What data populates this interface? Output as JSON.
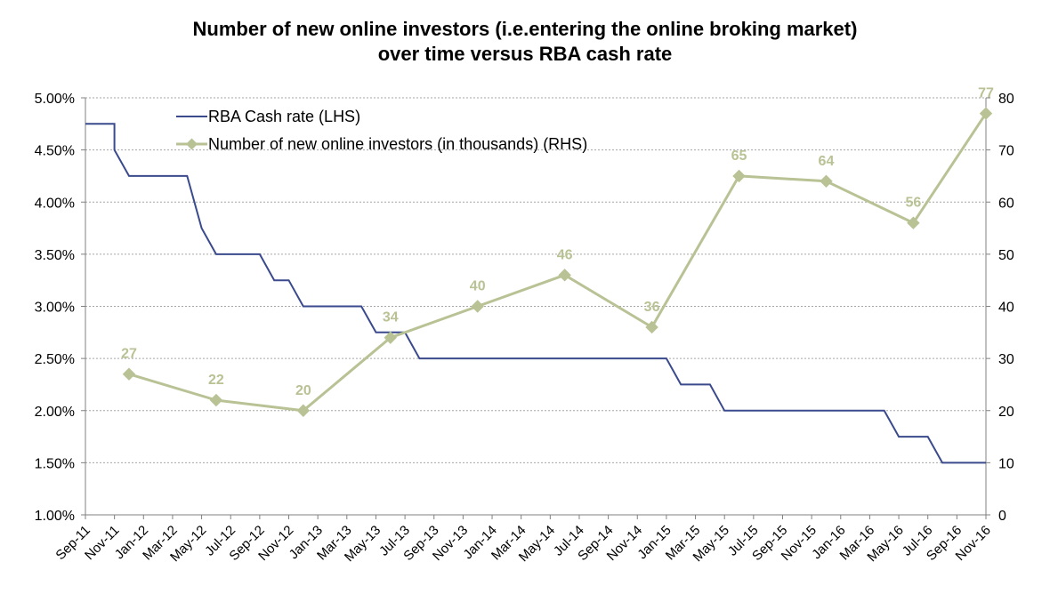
{
  "chart_data": {
    "type": "line",
    "title_line1": "Number of new online investors (i.e.entering the online broking market)",
    "title_line2": "over time versus RBA cash rate",
    "categories": [
      "Sep-11",
      "Nov-11",
      "Jan-12",
      "Mar-12",
      "May-12",
      "Jul-12",
      "Sep-12",
      "Nov-12",
      "Jan-13",
      "Mar-13",
      "May-13",
      "Jul-13",
      "Sep-13",
      "Nov-13",
      "Jan-14",
      "Mar-14",
      "May-14",
      "Jul-14",
      "Sep-14",
      "Nov-14",
      "Jan-15",
      "Mar-15",
      "May-15",
      "Jul-15",
      "Sep-15",
      "Nov-15",
      "Jan-16",
      "Mar-16",
      "May-16",
      "Jul-16",
      "Sep-16",
      "Nov-16"
    ],
    "left_axis": {
      "min": 1.0,
      "max": 5.0,
      "ticks": [
        "1.00%",
        "1.50%",
        "2.00%",
        "2.50%",
        "3.00%",
        "3.50%",
        "4.00%",
        "4.50%",
        "5.00%"
      ]
    },
    "right_axis": {
      "min": 0,
      "max": 80,
      "ticks": [
        "0",
        "10",
        "20",
        "30",
        "40",
        "50",
        "60",
        "70",
        "80"
      ]
    },
    "grid": true,
    "legend_position": "top-left",
    "series": [
      {
        "name": "RBA Cash rate (LHS)",
        "axis": "left",
        "color": "#3a4a8c",
        "shape": "step",
        "points": [
          [
            "Sep-11",
            4.75
          ],
          [
            "Nov-11",
            4.75
          ],
          [
            "Nov-11",
            4.5
          ],
          [
            "Dec-11",
            4.25
          ],
          [
            "Apr-12",
            4.25
          ],
          [
            "May-12",
            3.75
          ],
          [
            "Jun-12",
            3.5
          ],
          [
            "Sep-12",
            3.5
          ],
          [
            "Oct-12",
            3.25
          ],
          [
            "Nov-12",
            3.25
          ],
          [
            "Dec-12",
            3.0
          ],
          [
            "Apr-13",
            3.0
          ],
          [
            "May-13",
            2.75
          ],
          [
            "Jul-13",
            2.75
          ],
          [
            "Aug-13",
            2.5
          ],
          [
            "Jan-15",
            2.5
          ],
          [
            "Feb-15",
            2.25
          ],
          [
            "Apr-15",
            2.25
          ],
          [
            "May-15",
            2.0
          ],
          [
            "Apr-16",
            2.0
          ],
          [
            "May-16",
            1.75
          ],
          [
            "Jul-16",
            1.75
          ],
          [
            "Aug-16",
            1.5
          ],
          [
            "Nov-16",
            1.5
          ]
        ]
      },
      {
        "name": "Number of new online investors (in thousands) (RHS)",
        "axis": "right",
        "color": "#b8c294",
        "label_color": "#b8c294",
        "points": [
          [
            "Dec-11",
            27
          ],
          [
            "Jun-12",
            22
          ],
          [
            "Dec-12",
            20
          ],
          [
            "Jun-13",
            34
          ],
          [
            "Dec-13",
            40
          ],
          [
            "Jun-14",
            46
          ],
          [
            "Dec-14",
            36
          ],
          [
            "Jun-15",
            65
          ],
          [
            "Dec-15",
            64
          ],
          [
            "Jun-16",
            56
          ],
          [
            "Nov-16",
            77
          ]
        ],
        "labels": [
          "27",
          "22",
          "20",
          "34",
          "40",
          "46",
          "36",
          "65",
          "64",
          "56",
          "77"
        ]
      }
    ]
  }
}
